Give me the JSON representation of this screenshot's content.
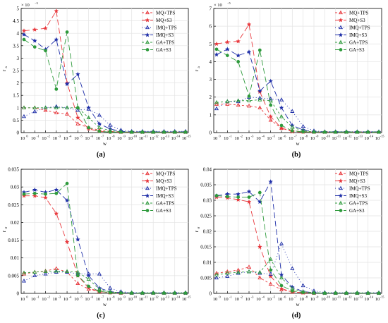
{
  "chart_data": [
    {
      "type": "line",
      "panel_label": "(a)",
      "xlabel": "w",
      "ylabel": "r",
      "ylabel_sub": "a",
      "x_exponents": [
        0,
        -1,
        -2,
        -3,
        -4,
        -5,
        -6,
        -7,
        -8,
        -9,
        -10,
        -11,
        -12,
        -13,
        -14,
        -15
      ],
      "x_tick_base": "10",
      "ylim": [
        0,
        5
      ],
      "y_ticks": [
        "0",
        "0.5",
        "1",
        "1.5",
        "2",
        "2.5",
        "3",
        "3.5",
        "4",
        "4.5",
        "5"
      ],
      "y_multiplier": "× 10",
      "y_multiplier_exp": "−3",
      "grid": true,
      "legend_position": "top-right",
      "series": [
        {
          "name": "MQ+TPS",
          "color": "#e8383d",
          "marker": "triangle",
          "filled": false,
          "dash": "3,3",
          "values": [
            1.0,
            1.0,
            0.9,
            0.8,
            0.75,
            0.35,
            0.2,
            0.1,
            0.05,
            0.02,
            0.02,
            0.02,
            0.02,
            0.02,
            0.02,
            0.02
          ]
        },
        {
          "name": "MQ+S3",
          "color": "#e8383d",
          "marker": "star",
          "filled": true,
          "dash": "8,4",
          "values": [
            4.1,
            4.15,
            4.2,
            4.9,
            2.0,
            0.6,
            0.15,
            0.05,
            0.02,
            0.02,
            0.02,
            0.02,
            0.02,
            0.02,
            0.02,
            0.02
          ]
        },
        {
          "name": "IMQ+TPS",
          "color": "#1f2fa8",
          "marker": "triangle",
          "filled": false,
          "dash": "1,3",
          "values": [
            0.65,
            0.85,
            1.0,
            1.05,
            1.0,
            0.9,
            0.95,
            0.7,
            0.3,
            0.1,
            0.05,
            0.05,
            0.05,
            0.05,
            0.05,
            0.05
          ]
        },
        {
          "name": "IMQ+S3",
          "color": "#1f2fa8",
          "marker": "star",
          "filled": true,
          "dash": "8,4",
          "values": [
            3.95,
            3.7,
            3.35,
            3.75,
            1.95,
            2.35,
            1.0,
            0.35,
            0.15,
            0.05,
            0.03,
            0.03,
            0.03,
            0.03,
            0.03,
            0.03
          ]
        },
        {
          "name": "GA+TPS",
          "color": "#2e9a3c",
          "marker": "triangle",
          "filled": false,
          "dash": "3,3",
          "values": [
            1.0,
            1.0,
            1.0,
            1.0,
            1.0,
            1.0,
            0.6,
            0.2,
            0.08,
            0.03,
            0.02,
            0.02,
            0.02,
            0.02,
            0.02,
            0.02
          ]
        },
        {
          "name": "GA+S3",
          "color": "#2e9a3c",
          "marker": "circle",
          "filled": true,
          "dash": "8,4",
          "values": [
            3.75,
            3.45,
            3.3,
            1.75,
            4.05,
            1.0,
            0.2,
            0.05,
            0.02,
            0.02,
            0.02,
            0.02,
            0.02,
            0.02,
            0.02,
            0.02
          ]
        }
      ]
    },
    {
      "type": "line",
      "panel_label": "(b)",
      "xlabel": "w",
      "ylabel": "r",
      "ylabel_sub": "a",
      "x_exponents": [
        0,
        -1,
        -2,
        -3,
        -4,
        -5,
        -6,
        -7,
        -8,
        -9,
        -10,
        -11,
        -12,
        -13,
        -14,
        -15
      ],
      "x_tick_base": "10",
      "ylim": [
        0,
        7
      ],
      "y_ticks": [
        "0",
        "1",
        "2",
        "3",
        "4",
        "5",
        "6",
        "7"
      ],
      "y_multiplier": "× 10",
      "y_multiplier_exp": "−5",
      "grid": true,
      "legend_position": "top-right",
      "series": [
        {
          "name": "MQ+TPS",
          "color": "#e8383d",
          "marker": "triangle",
          "filled": false,
          "dash": "3,3",
          "values": [
            1.6,
            1.6,
            1.55,
            1.5,
            1.4,
            0.7,
            0.25,
            0.1,
            0.05,
            0.03,
            0.03,
            0.03,
            0.03,
            0.03,
            0.03,
            0.03
          ]
        },
        {
          "name": "MQ+S3",
          "color": "#e8383d",
          "marker": "star",
          "filled": true,
          "dash": "8,4",
          "values": [
            5.0,
            5.1,
            5.15,
            6.1,
            2.3,
            0.9,
            0.25,
            0.05,
            0.03,
            0.03,
            0.03,
            0.03,
            0.03,
            0.03,
            0.03,
            0.03
          ]
        },
        {
          "name": "IMQ+TPS",
          "color": "#1f2fa8",
          "marker": "triangle",
          "filled": false,
          "dash": "1,3",
          "values": [
            1.35,
            1.75,
            1.75,
            2.0,
            1.95,
            1.9,
            1.85,
            1.2,
            0.35,
            0.1,
            0.05,
            0.05,
            0.05,
            0.05,
            0.05,
            0.05
          ]
        },
        {
          "name": "IMQ+S3",
          "color": "#1f2fa8",
          "marker": "star",
          "filled": true,
          "dash": "8,4",
          "values": [
            4.4,
            4.7,
            4.35,
            4.55,
            2.35,
            2.9,
            1.4,
            0.4,
            0.15,
            0.05,
            0.04,
            0.04,
            0.04,
            0.04,
            0.04,
            0.04
          ]
        },
        {
          "name": "GA+TPS",
          "color": "#2e9a3c",
          "marker": "triangle",
          "filled": false,
          "dash": "3,3",
          "values": [
            1.7,
            1.75,
            1.8,
            1.8,
            1.85,
            1.8,
            0.9,
            0.3,
            0.1,
            0.04,
            0.03,
            0.03,
            0.03,
            0.03,
            0.03,
            0.03
          ]
        },
        {
          "name": "GA+S3",
          "color": "#2e9a3c",
          "marker": "circle",
          "filled": true,
          "dash": "8,4",
          "values": [
            4.7,
            4.35,
            4.0,
            2.05,
            4.65,
            1.55,
            0.4,
            0.1,
            0.04,
            0.03,
            0.03,
            0.03,
            0.03,
            0.03,
            0.03,
            0.03
          ]
        }
      ]
    },
    {
      "type": "line",
      "panel_label": "(c)",
      "xlabel": "w",
      "ylabel": "r",
      "ylabel_sub": "σ",
      "x_exponents": [
        0,
        -1,
        -2,
        -3,
        -4,
        -5,
        -6,
        -7,
        -8,
        -9,
        -10,
        -11,
        -12,
        -13,
        -14,
        -15
      ],
      "x_tick_base": "10",
      "ylim": [
        0,
        0.035
      ],
      "y_ticks": [
        "0",
        "0.005",
        "0.01",
        "0.015",
        "0.02",
        "0.025",
        "0.03",
        "0.035"
      ],
      "y_multiplier": "",
      "y_multiplier_exp": "",
      "grid": true,
      "legend_position": "top-right",
      "series": [
        {
          "name": "MQ+TPS",
          "color": "#e8383d",
          "marker": "triangle",
          "filled": false,
          "dash": "3,3",
          "values": [
            0.0055,
            0.006,
            0.0063,
            0.007,
            0.006,
            0.0028,
            0.0012,
            0.0005,
            0.0002,
            0.0001,
            0.0001,
            0.0001,
            0.0001,
            0.0001,
            0.0001,
            0.0001
          ]
        },
        {
          "name": "MQ+S3",
          "color": "#e8383d",
          "marker": "star",
          "filled": true,
          "dash": "8,4",
          "values": [
            0.0275,
            0.0275,
            0.027,
            0.0225,
            0.0145,
            0.005,
            0.0015,
            0.0005,
            0.0002,
            0.0001,
            0.0001,
            0.0001,
            0.0001,
            0.0001,
            0.0001,
            0.0001
          ]
        },
        {
          "name": "IMQ+TPS",
          "color": "#1f2fa8",
          "marker": "triangle",
          "filled": false,
          "dash": "1,3",
          "values": [
            0.0035,
            0.005,
            0.0055,
            0.006,
            0.006,
            0.0055,
            0.0055,
            0.0055,
            0.0015,
            0.0005,
            0.0002,
            0.0002,
            0.0002,
            0.0002,
            0.0002,
            0.0002
          ]
        },
        {
          "name": "IMQ+S3",
          "color": "#1f2fa8",
          "marker": "star",
          "filled": true,
          "dash": "8,4",
          "values": [
            0.0285,
            0.0292,
            0.0285,
            0.0292,
            0.0262,
            0.0152,
            0.005,
            0.0015,
            0.0005,
            0.0002,
            0.0001,
            0.0001,
            0.0001,
            0.0001,
            0.0001,
            0.0001
          ]
        },
        {
          "name": "GA+TPS",
          "color": "#2e9a3c",
          "marker": "triangle",
          "filled": false,
          "dash": "3,3",
          "values": [
            0.0058,
            0.006,
            0.0062,
            0.0063,
            0.0062,
            0.006,
            0.004,
            0.0012,
            0.0004,
            0.0002,
            0.0001,
            0.0001,
            0.0001,
            0.0001,
            0.0001,
            0.0001
          ]
        },
        {
          "name": "GA+S3",
          "color": "#2e9a3c",
          "marker": "circle",
          "filled": true,
          "dash": "8,4",
          "values": [
            0.028,
            0.0282,
            0.028,
            0.0282,
            0.031,
            0.005,
            0.002,
            0.0006,
            0.0002,
            0.0001,
            0.0001,
            0.0001,
            0.0001,
            0.0001,
            0.0001,
            0.0001
          ]
        }
      ]
    },
    {
      "type": "line",
      "panel_label": "(d)",
      "xlabel": "w",
      "ylabel": "r",
      "ylabel_sub": "σ",
      "x_exponents": [
        0,
        -1,
        -2,
        -3,
        -4,
        -5,
        -6,
        -7,
        -8,
        -9,
        -10,
        -11,
        -12,
        -13,
        -14,
        -15
      ],
      "x_tick_base": "10",
      "ylim": [
        0,
        0.04
      ],
      "y_ticks": [
        "0",
        "0.005",
        "0.01",
        "0.015",
        "0.02",
        "0.025",
        "0.03",
        "0.035",
        "0.04"
      ],
      "y_multiplier": "",
      "y_multiplier_exp": "",
      "grid": true,
      "legend_position": "top-right",
      "series": [
        {
          "name": "MQ+TPS",
          "color": "#e8383d",
          "marker": "triangle",
          "filled": false,
          "dash": "3,3",
          "values": [
            0.0065,
            0.007,
            0.0075,
            0.0085,
            0.005,
            0.003,
            0.0012,
            0.0005,
            0.0002,
            0.0001,
            0.0001,
            0.0001,
            0.0001,
            0.0001,
            0.0001,
            0.0001
          ]
        },
        {
          "name": "MQ+S3",
          "color": "#e8383d",
          "marker": "star",
          "filled": true,
          "dash": "8,4",
          "values": [
            0.031,
            0.0308,
            0.0302,
            0.0295,
            0.015,
            0.0055,
            0.0015,
            0.0005,
            0.0002,
            0.0001,
            0.0001,
            0.0001,
            0.0001,
            0.0001,
            0.0001,
            0.0001
          ]
        },
        {
          "name": "IMQ+TPS",
          "color": "#1f2fa8",
          "marker": "triangle",
          "filled": false,
          "dash": "1,3",
          "values": [
            0.005,
            0.0055,
            0.0065,
            0.007,
            0.0065,
            0.0062,
            0.016,
            0.008,
            0.0025,
            0.0008,
            0.0003,
            0.0002,
            0.0002,
            0.0002,
            0.0002,
            0.0002
          ]
        },
        {
          "name": "IMQ+S3",
          "color": "#1f2fa8",
          "marker": "star",
          "filled": true,
          "dash": "8,4",
          "values": [
            0.0315,
            0.032,
            0.032,
            0.0328,
            0.0295,
            0.036,
            0.006,
            0.002,
            0.0006,
            0.0002,
            0.0001,
            0.0001,
            0.0001,
            0.0001,
            0.0001,
            0.0001
          ]
        },
        {
          "name": "GA+TPS",
          "color": "#2e9a3c",
          "marker": "triangle",
          "filled": false,
          "dash": "3,3",
          "values": [
            0.006,
            0.0065,
            0.0068,
            0.007,
            0.0068,
            0.011,
            0.005,
            0.0015,
            0.0005,
            0.0002,
            0.0001,
            0.0001,
            0.0001,
            0.0001,
            0.0001,
            0.0001
          ]
        },
        {
          "name": "GA+S3",
          "color": "#2e9a3c",
          "marker": "circle",
          "filled": true,
          "dash": "8,4",
          "values": [
            0.0315,
            0.0312,
            0.031,
            0.031,
            0.0325,
            0.0075,
            0.0025,
            0.0008,
            0.0003,
            0.0001,
            0.0001,
            0.0001,
            0.0001,
            0.0001,
            0.0001,
            0.0001
          ]
        }
      ]
    }
  ]
}
